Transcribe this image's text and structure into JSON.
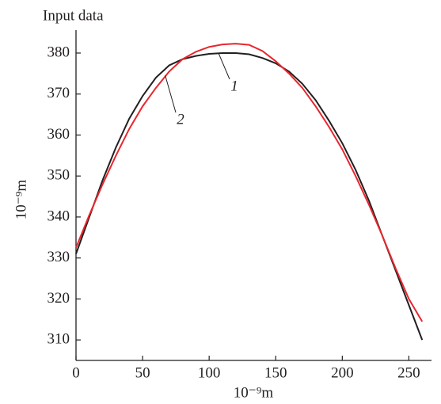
{
  "chart_data": {
    "type": "line",
    "title": "Input data",
    "xlabel": "10⁻⁹m",
    "ylabel": "10⁻⁹m",
    "x": [
      0,
      10,
      20,
      30,
      40,
      50,
      60,
      70,
      80,
      90,
      100,
      110,
      120,
      130,
      140,
      150,
      160,
      170,
      180,
      190,
      200,
      210,
      220,
      230,
      240,
      250,
      260
    ],
    "series": [
      {
        "name": "1",
        "color": "#231f20",
        "values": [
          331,
          340,
          349,
          357,
          364,
          369.5,
          374,
          377,
          378.5,
          379.3,
          379.8,
          380,
          380,
          379.7,
          378.8,
          377.5,
          375.5,
          372.5,
          368.5,
          363.5,
          358,
          351.5,
          344,
          335.5,
          327,
          318.5,
          310
        ]
      },
      {
        "name": "2",
        "color": "#e8262d",
        "values": [
          332.5,
          340.5,
          348,
          355,
          361.5,
          367,
          371.5,
          375.5,
          378.5,
          380.3,
          381.5,
          382.1,
          382.3,
          382,
          380.5,
          378,
          375,
          371.5,
          367,
          362,
          356.5,
          350,
          343,
          335.5,
          327.5,
          320,
          314.5
        ]
      }
    ],
    "xlim": [
      0,
      267
    ],
    "ylim": [
      305,
      385.6
    ],
    "xticks": [
      0,
      50,
      100,
      150,
      200,
      250
    ],
    "yticks": [
      310,
      320,
      330,
      340,
      350,
      360,
      370,
      380
    ]
  }
}
